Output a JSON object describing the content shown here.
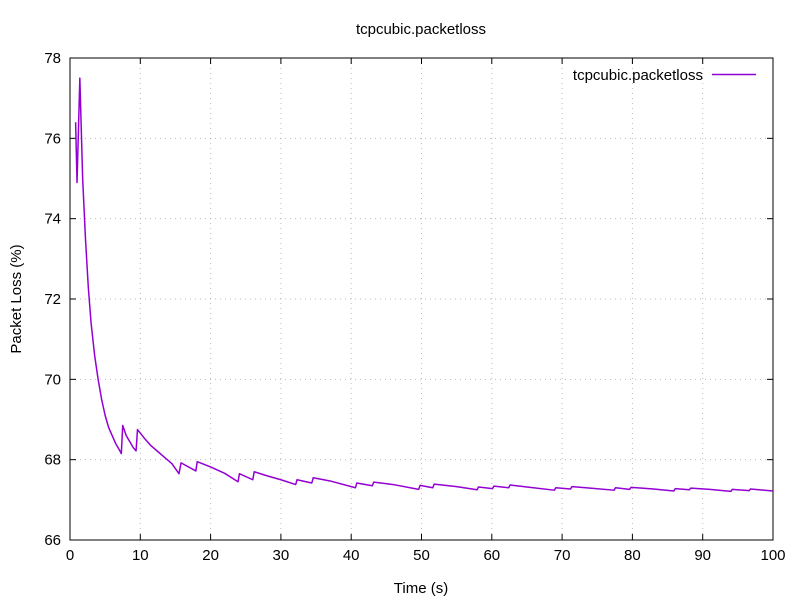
{
  "chart_data": {
    "type": "line",
    "title": "tcpcubic.packetloss",
    "xlabel": "Time (s)",
    "ylabel": "Packet Loss (%)",
    "xlim": [
      0,
      100
    ],
    "ylim": [
      66,
      78
    ],
    "xticks": [
      0,
      10,
      20,
      30,
      40,
      50,
      60,
      70,
      80,
      90,
      100
    ],
    "yticks": [
      66,
      68,
      70,
      72,
      74,
      76,
      78
    ],
    "grid": true,
    "legend": "top-right",
    "series": [
      {
        "name": "tcpcubic.packetloss",
        "color": "#9400d3",
        "points": [
          [
            0.8,
            76.4
          ],
          [
            1.0,
            74.9
          ],
          [
            1.4,
            77.5
          ],
          [
            1.8,
            75.0
          ],
          [
            2.2,
            73.5
          ],
          [
            2.6,
            72.3
          ],
          [
            3.0,
            71.4
          ],
          [
            3.5,
            70.6
          ],
          [
            4.0,
            70.0
          ],
          [
            4.5,
            69.5
          ],
          [
            5.0,
            69.1
          ],
          [
            5.5,
            68.8
          ],
          [
            6.0,
            68.6
          ],
          [
            6.5,
            68.4
          ],
          [
            7.0,
            68.25
          ],
          [
            7.3,
            68.15
          ],
          [
            7.5,
            68.85
          ],
          [
            8.0,
            68.6
          ],
          [
            8.5,
            68.45
          ],
          [
            9.0,
            68.3
          ],
          [
            9.4,
            68.22
          ],
          [
            9.6,
            68.75
          ],
          [
            10.5,
            68.55
          ],
          [
            11.5,
            68.35
          ],
          [
            12.5,
            68.2
          ],
          [
            13.5,
            68.05
          ],
          [
            14.5,
            67.9
          ],
          [
            15.5,
            67.65
          ],
          [
            15.8,
            67.92
          ],
          [
            17.9,
            67.72
          ],
          [
            18.1,
            67.95
          ],
          [
            20.0,
            67.82
          ],
          [
            22.0,
            67.66
          ],
          [
            23.9,
            67.45
          ],
          [
            24.1,
            67.65
          ],
          [
            26.0,
            67.5
          ],
          [
            26.2,
            67.7
          ],
          [
            28.0,
            67.6
          ],
          [
            30.0,
            67.5
          ],
          [
            32.1,
            67.38
          ],
          [
            32.3,
            67.5
          ],
          [
            34.4,
            67.42
          ],
          [
            34.6,
            67.55
          ],
          [
            37.0,
            67.47
          ],
          [
            40.6,
            67.3
          ],
          [
            40.8,
            67.42
          ],
          [
            43.0,
            67.35
          ],
          [
            43.2,
            67.44
          ],
          [
            46.0,
            67.38
          ],
          [
            49.6,
            67.26
          ],
          [
            49.8,
            67.36
          ],
          [
            51.6,
            67.3
          ],
          [
            51.8,
            67.39
          ],
          [
            55.0,
            67.33
          ],
          [
            57.9,
            67.25
          ],
          [
            58.1,
            67.32
          ],
          [
            60.1,
            67.28
          ],
          [
            60.3,
            67.34
          ],
          [
            62.4,
            67.3
          ],
          [
            62.6,
            67.37
          ],
          [
            65.0,
            67.32
          ],
          [
            68.9,
            67.24
          ],
          [
            69.1,
            67.3
          ],
          [
            71.2,
            67.27
          ],
          [
            71.4,
            67.33
          ],
          [
            74.0,
            67.29
          ],
          [
            77.4,
            67.24
          ],
          [
            77.6,
            67.3
          ],
          [
            79.6,
            67.26
          ],
          [
            79.8,
            67.31
          ],
          [
            83.0,
            67.27
          ],
          [
            85.9,
            67.22
          ],
          [
            86.1,
            67.28
          ],
          [
            88.1,
            67.25
          ],
          [
            88.3,
            67.29
          ],
          [
            91.0,
            67.26
          ],
          [
            94.0,
            67.21
          ],
          [
            94.2,
            67.26
          ],
          [
            96.6,
            67.23
          ],
          [
            96.8,
            67.27
          ],
          [
            100.0,
            67.22
          ]
        ]
      }
    ]
  }
}
